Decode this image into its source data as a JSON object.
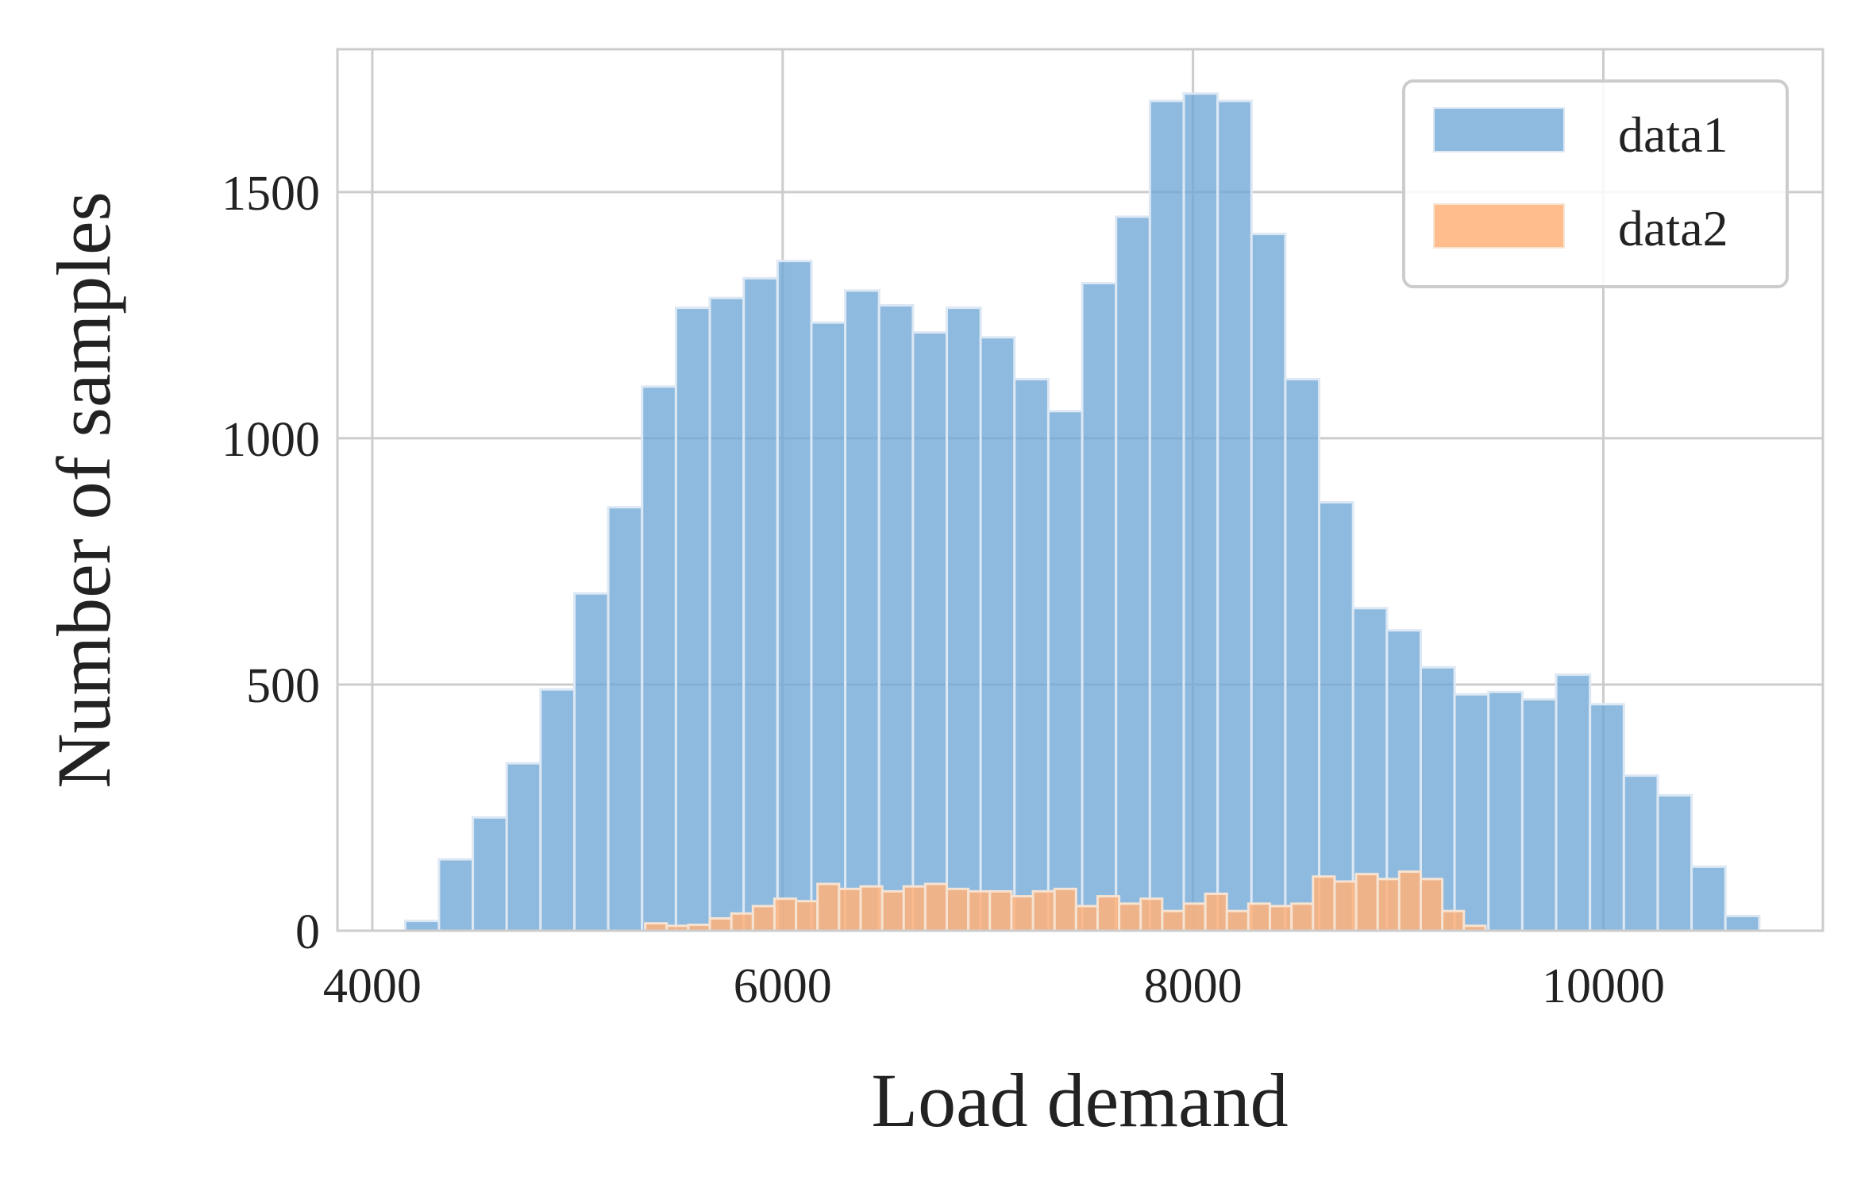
{
  "chart_data": {
    "type": "histogram",
    "title": "",
    "xlabel": "Load demand",
    "ylabel": "Number of samples",
    "xlim": [
      3830,
      11070
    ],
    "ylim": [
      0,
      1790
    ],
    "xticks": [
      4000,
      6000,
      8000,
      10000
    ],
    "yticks": [
      0,
      500,
      1000,
      1500
    ],
    "grid": true,
    "legend_position": "top-right",
    "colors": {
      "data1": "#6fa6d6",
      "data2": "#ffb27a",
      "bar_edge": "#dce8f4",
      "grid": "#cccccc"
    },
    "series": [
      {
        "name": "data1",
        "bin_start": 4160,
        "bin_width": 165,
        "counts": [
          20,
          145,
          230,
          340,
          490,
          685,
          860,
          1105,
          1265,
          1285,
          1325,
          1360,
          1235,
          1300,
          1270,
          1215,
          1265,
          1205,
          1120,
          1055,
          1315,
          1450,
          1685,
          1700,
          1685,
          1415,
          1120,
          870,
          655,
          610,
          535,
          480,
          485,
          470,
          520,
          460,
          315,
          275,
          130,
          30
        ]
      },
      {
        "name": "data2",
        "bin_start": 5330,
        "bin_width": 105,
        "counts": [
          15,
          10,
          12,
          25,
          35,
          50,
          65,
          60,
          95,
          85,
          90,
          80,
          90,
          95,
          85,
          80,
          80,
          70,
          80,
          85,
          50,
          70,
          55,
          65,
          40,
          55,
          75,
          40,
          55,
          50,
          55,
          110,
          100,
          115,
          105,
          120,
          105,
          40,
          10
        ]
      }
    ]
  }
}
